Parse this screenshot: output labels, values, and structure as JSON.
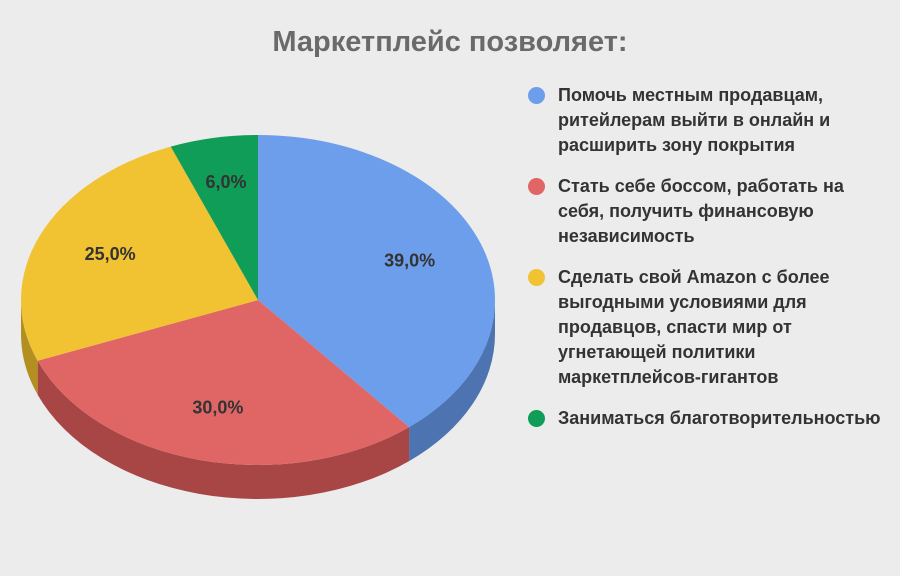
{
  "chart_data": {
    "type": "pie",
    "title": "Маркетплейс позволяет:",
    "legend_position": "right",
    "style": "3d",
    "slices": [
      {
        "label": "Помочь местным продавцам, ритейлерам выйти в онлайн и расширить зону покрытия",
        "value": 39.0,
        "value_label": "39,0%",
        "color": "#6d9eeb",
        "side_color": "#4d73b0"
      },
      {
        "label": "Стать себе боссом, работать на себя, получить финансовую независимость",
        "value": 30.0,
        "value_label": "30,0%",
        "color": "#e06666",
        "side_color": "#a84646"
      },
      {
        "label": "Сделать свой Amazon с более выгодными условиями для продавцов, спасти мир от угнетающей политики маркетплейсов-гигантов",
        "value": 25.0,
        "value_label": "25,0%",
        "color": "#f1c232",
        "side_color": "#b38f22"
      },
      {
        "label": "Заниматься благотворительностью",
        "value": 6.0,
        "value_label": "6,0%",
        "color": "#0f9d58",
        "side_color": "#0a6e3d"
      }
    ]
  }
}
